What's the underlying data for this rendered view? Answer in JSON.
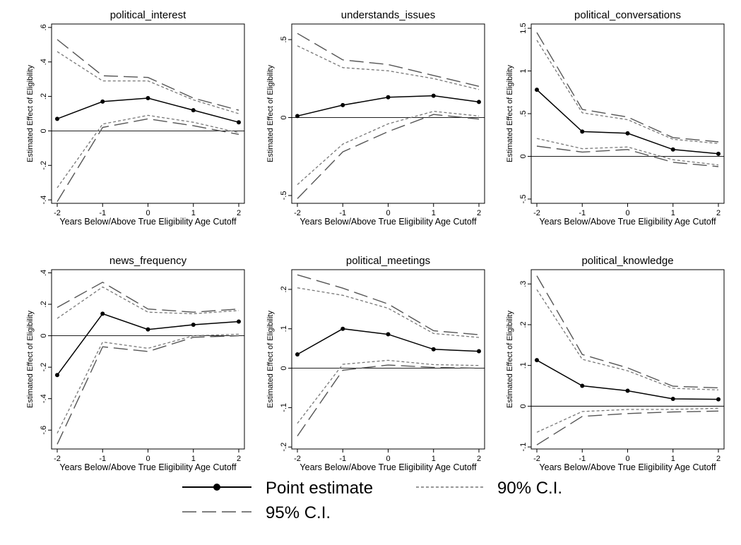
{
  "legend": {
    "point": "Point estimate",
    "ci90": "90% C.I.",
    "ci95": "95% C.I."
  },
  "colors": {
    "point": "#000000",
    "ci95": "#555555",
    "ci90": "#777777",
    "axis": "#000000"
  },
  "chart_data": [
    {
      "type": "line",
      "title": "political_interest",
      "xlabel": "Years Below/Above True Eligibility Age Cutoff",
      "ylabel": "Estimated Effect of Eligibility",
      "x": [
        -2,
        -1,
        0,
        1,
        2
      ],
      "ylim": [
        -0.42,
        0.62
      ],
      "yticks": [
        -0.4,
        -0.2,
        0,
        0.2,
        0.4,
        0.6
      ],
      "ytick_labels": [
        "-.4",
        "-.2",
        "0",
        ".2",
        ".4",
        ".6"
      ],
      "series": [
        {
          "name": "Point estimate",
          "values": [
            0.07,
            0.17,
            0.19,
            0.12,
            0.05
          ]
        },
        {
          "name": "90% C.I.",
          "role": "ci90_upper",
          "values": [
            0.46,
            0.29,
            0.29,
            0.18,
            0.1
          ]
        },
        {
          "name": "90% C.I.",
          "role": "ci90_lower",
          "values": [
            -0.33,
            0.04,
            0.09,
            0.05,
            -0.01
          ]
        },
        {
          "name": "95% C.I.",
          "role": "ci95_upper",
          "values": [
            0.53,
            0.32,
            0.31,
            0.19,
            0.12
          ]
        },
        {
          "name": "95% C.I.",
          "role": "ci95_lower",
          "values": [
            -0.41,
            0.02,
            0.07,
            0.03,
            -0.02
          ]
        }
      ]
    },
    {
      "type": "line",
      "title": "understands_issues",
      "xlabel": "Years Below/Above True Eligibility Age Cutoff",
      "ylabel": "Estimated Effect of Eligibility",
      "x": [
        -2,
        -1,
        0,
        1,
        2
      ],
      "ylim": [
        -0.55,
        0.6
      ],
      "yticks": [
        -0.5,
        0,
        0.5
      ],
      "ytick_labels": [
        "-.5",
        "0",
        ".5"
      ],
      "series": [
        {
          "name": "Point estimate",
          "values": [
            0.01,
            0.08,
            0.13,
            0.14,
            0.1
          ]
        },
        {
          "name": "90% C.I.",
          "role": "ci90_upper",
          "values": [
            0.46,
            0.32,
            0.3,
            0.25,
            0.18
          ]
        },
        {
          "name": "90% C.I.",
          "role": "ci90_lower",
          "values": [
            -0.43,
            -0.17,
            -0.04,
            0.04,
            0.01
          ]
        },
        {
          "name": "95% C.I.",
          "role": "ci95_upper",
          "values": [
            0.54,
            0.37,
            0.34,
            0.27,
            0.2
          ]
        },
        {
          "name": "95% C.I.",
          "role": "ci95_lower",
          "values": [
            -0.52,
            -0.22,
            -0.09,
            0.02,
            -0.01
          ]
        }
      ]
    },
    {
      "type": "line",
      "title": "political_conversations",
      "xlabel": "Years Below/Above True Eligibility Age Cutoff",
      "ylabel": "Estimated Effect of Eligibility",
      "x": [
        -2,
        -1,
        0,
        1,
        2
      ],
      "ylim": [
        -0.55,
        1.55
      ],
      "yticks": [
        -0.5,
        0,
        0.5,
        1,
        1.5
      ],
      "ytick_labels": [
        "-.5",
        "0",
        ".5",
        "1",
        "1.5"
      ],
      "series": [
        {
          "name": "Point estimate",
          "values": [
            0.78,
            0.29,
            0.27,
            0.08,
            0.03
          ]
        },
        {
          "name": "90% C.I.",
          "role": "ci90_upper",
          "values": [
            1.36,
            0.51,
            0.43,
            0.2,
            0.15
          ]
        },
        {
          "name": "90% C.I.",
          "role": "ci90_lower",
          "values": [
            0.21,
            0.09,
            0.11,
            -0.04,
            -0.1
          ]
        },
        {
          "name": "95% C.I.",
          "role": "ci95_upper",
          "values": [
            1.45,
            0.55,
            0.46,
            0.22,
            0.17
          ]
        },
        {
          "name": "95% C.I.",
          "role": "ci95_lower",
          "values": [
            0.12,
            0.05,
            0.08,
            -0.07,
            -0.12
          ]
        }
      ]
    },
    {
      "type": "line",
      "title": "news_frequency",
      "xlabel": "Years Below/Above True Eligibility Age Cutoff",
      "ylabel": "Estimated Effect of Eligibility",
      "x": [
        -2,
        -1,
        0,
        1,
        2
      ],
      "ylim": [
        -0.72,
        0.42
      ],
      "yticks": [
        -0.6,
        -0.4,
        -0.2,
        0,
        0.2,
        0.4
      ],
      "ytick_labels": [
        "-.6",
        "-.4",
        "-.2",
        "0",
        ".2",
        ".4"
      ],
      "series": [
        {
          "name": "Point estimate",
          "values": [
            -0.25,
            0.14,
            0.04,
            0.07,
            0.09
          ]
        },
        {
          "name": "90% C.I.",
          "role": "ci90_upper",
          "values": [
            0.11,
            0.31,
            0.15,
            0.14,
            0.16
          ]
        },
        {
          "name": "90% C.I.",
          "role": "ci90_lower",
          "values": [
            -0.62,
            -0.04,
            -0.08,
            0.0,
            0.01
          ]
        },
        {
          "name": "95% C.I.",
          "role": "ci95_upper",
          "values": [
            0.18,
            0.34,
            0.17,
            0.15,
            0.17
          ]
        },
        {
          "name": "95% C.I.",
          "role": "ci95_lower",
          "values": [
            -0.69,
            -0.07,
            -0.1,
            -0.01,
            0.0
          ]
        }
      ]
    },
    {
      "type": "line",
      "title": "political_meetings",
      "xlabel": "Years Below/Above True Eligibility Age Cutoff",
      "ylabel": "Estimated Effect of Eligibility",
      "x": [
        -2,
        -1,
        0,
        1,
        2
      ],
      "ylim": [
        -0.205,
        0.25
      ],
      "yticks": [
        -0.2,
        -0.1,
        0,
        0.1,
        0.2
      ],
      "ytick_labels": [
        "-.2",
        "-.1",
        "0",
        ".1",
        ".2"
      ],
      "series": [
        {
          "name": "Point estimate",
          "values": [
            0.035,
            0.1,
            0.086,
            0.048,
            0.043
          ]
        },
        {
          "name": "90% C.I.",
          "role": "ci90_upper",
          "values": [
            0.204,
            0.185,
            0.152,
            0.088,
            0.078
          ]
        },
        {
          "name": "90% C.I.",
          "role": "ci90_lower",
          "values": [
            -0.14,
            0.01,
            0.02,
            0.009,
            0.007
          ]
        },
        {
          "name": "95% C.I.",
          "role": "ci95_upper",
          "values": [
            0.237,
            0.203,
            0.163,
            0.095,
            0.085
          ]
        },
        {
          "name": "95% C.I.",
          "role": "ci95_lower",
          "values": [
            -0.172,
            -0.005,
            0.008,
            0.002,
            0.0
          ]
        }
      ]
    },
    {
      "type": "line",
      "title": "political_knowledge",
      "xlabel": "Years Below/Above True Eligibility Age Cutoff",
      "ylabel": "Estimated Effect of Eligibility",
      "x": [
        -2,
        -1,
        0,
        1,
        2
      ],
      "ylim": [
        -0.105,
        0.335
      ],
      "yticks": [
        -0.1,
        0,
        0.1,
        0.2,
        0.3
      ],
      "ytick_labels": [
        "-.1",
        "0",
        ".1",
        ".2",
        ".3"
      ],
      "series": [
        {
          "name": "Point estimate",
          "values": [
            0.113,
            0.05,
            0.038,
            0.018,
            0.017
          ]
        },
        {
          "name": "90% C.I.",
          "role": "ci90_upper",
          "values": [
            0.286,
            0.115,
            0.087,
            0.044,
            0.04
          ]
        },
        {
          "name": "90% C.I.",
          "role": "ci90_lower",
          "values": [
            -0.064,
            -0.013,
            -0.008,
            -0.008,
            -0.005
          ]
        },
        {
          "name": "95% C.I.",
          "role": "ci95_upper",
          "values": [
            0.32,
            0.127,
            0.094,
            0.049,
            0.045
          ]
        },
        {
          "name": "95% C.I.",
          "role": "ci95_lower",
          "values": [
            -0.095,
            -0.025,
            -0.018,
            -0.014,
            -0.012
          ]
        }
      ]
    }
  ]
}
